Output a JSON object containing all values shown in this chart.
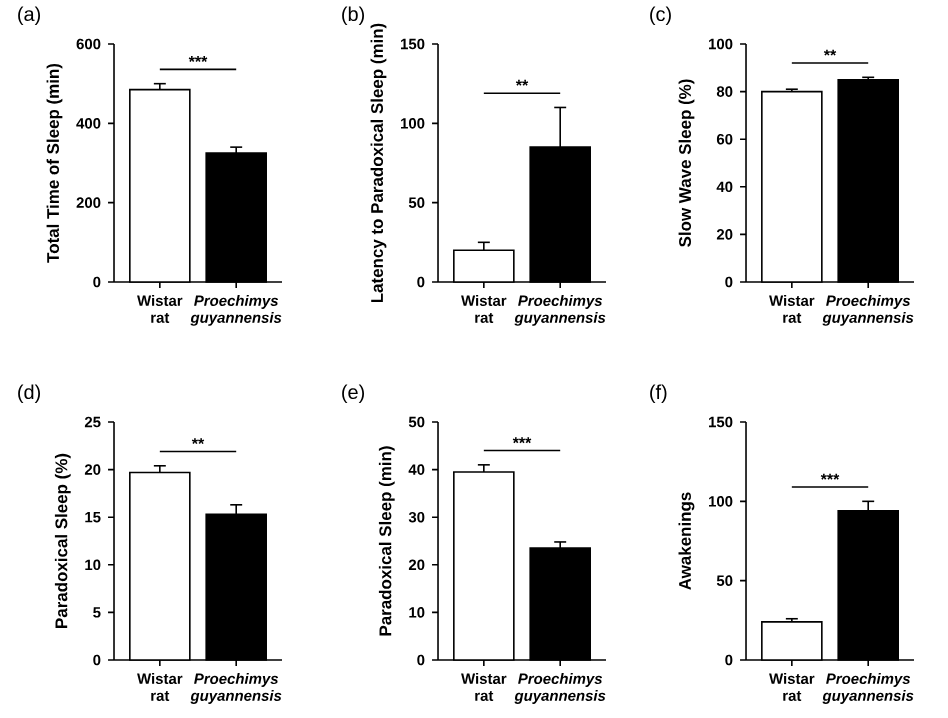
{
  "chart_data": [
    {
      "type": "bar",
      "title": "(a)",
      "ylabel": "Total Time of Sleep (min)",
      "categories": [
        "Wistar rat",
        "*Proechimys guyannensis*"
      ],
      "values": [
        485,
        325
      ],
      "errors": [
        15,
        15
      ],
      "colors": [
        "#ffffff",
        "#000000"
      ],
      "ylim": [
        0,
        600
      ],
      "yticks": [
        0,
        200,
        400,
        600
      ],
      "annotations": [
        "***"
      ]
    },
    {
      "type": "bar",
      "title": "(b)",
      "ylabel": "Latency to Paradoxical Sleep (min)",
      "categories": [
        "Wistar rat",
        "*Proechimys guyannensis*"
      ],
      "values": [
        20,
        85
      ],
      "errors": [
        5,
        25
      ],
      "colors": [
        "#ffffff",
        "#000000"
      ],
      "ylim": [
        0,
        150
      ],
      "yticks": [
        0,
        50,
        100,
        150
      ],
      "annotations": [
        "**"
      ]
    },
    {
      "type": "bar",
      "title": "(c)",
      "ylabel": "Slow Wave Sleep (%)",
      "categories": [
        "Wistar rat",
        "*Proechimys guyannensis*"
      ],
      "values": [
        80,
        85
      ],
      "errors": [
        1,
        1
      ],
      "colors": [
        "#ffffff",
        "#000000"
      ],
      "ylim": [
        0,
        100
      ],
      "yticks": [
        0,
        20,
        40,
        60,
        80,
        100
      ],
      "annotations": [
        "**"
      ]
    },
    {
      "type": "bar",
      "title": "(d)",
      "ylabel": "Paradoxical Sleep (%)",
      "categories": [
        "Wistar rat",
        "*Proechimys guyannensis*"
      ],
      "values": [
        19.7,
        15.3
      ],
      "errors": [
        0.7,
        1
      ],
      "colors": [
        "#ffffff",
        "#000000"
      ],
      "ylim": [
        0,
        25
      ],
      "yticks": [
        0,
        5,
        10,
        15,
        20,
        25
      ],
      "annotations": [
        "**"
      ]
    },
    {
      "type": "bar",
      "title": "(e)",
      "ylabel": "Paradoxical Sleep (min)",
      "categories": [
        "Wistar rat",
        "*Proechimys guyannensis*"
      ],
      "values": [
        39.5,
        23.5
      ],
      "errors": [
        1.5,
        1.3
      ],
      "colors": [
        "#ffffff",
        "#000000"
      ],
      "ylim": [
        0,
        50
      ],
      "yticks": [
        0,
        10,
        20,
        30,
        40,
        50
      ],
      "annotations": [
        "***"
      ]
    },
    {
      "type": "bar",
      "title": "(f)",
      "ylabel": "Awakenings",
      "categories": [
        "Wistar rat",
        "*Proechimys guyannensis*"
      ],
      "values": [
        24,
        94
      ],
      "errors": [
        2,
        6
      ],
      "colors": [
        "#ffffff",
        "#000000"
      ],
      "ylim": [
        0,
        150
      ],
      "yticks": [
        0,
        50,
        100,
        150
      ],
      "annotations": [
        "***"
      ]
    }
  ]
}
